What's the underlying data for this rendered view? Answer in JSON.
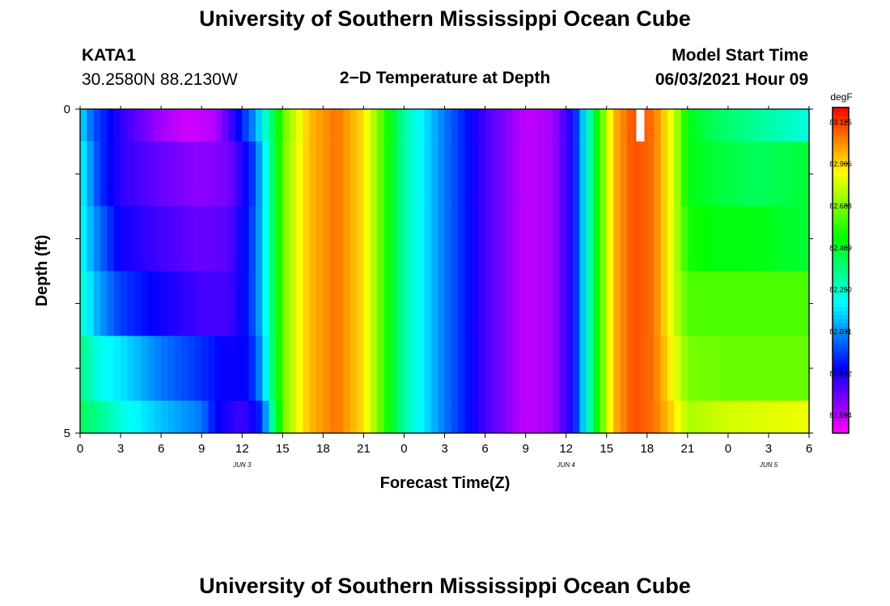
{
  "header": {
    "title": "University of Southern Mississippi Ocean Cube",
    "station_id": "KATA1",
    "station_coords": "30.2580N  88.2130W",
    "plot_title": "2−D Temperature at Depth",
    "model_start_label": "Model Start Time",
    "model_start_value": "06/03/2021 Hour 09"
  },
  "footer": {
    "title": "University of Southern Mississippi Ocean Cube"
  },
  "chart_data": {
    "type": "heatmap",
    "title": "2−D Temperature at Depth",
    "xlabel": "Forecast Time(Z)",
    "ylabel": "Depth (ft)",
    "units": "degF",
    "xlim_hours": [
      0,
      54
    ],
    "ylim_ft": [
      5,
      0
    ],
    "y_ticks": [
      "0",
      "5"
    ],
    "x_ticks": [
      {
        "hour": 0,
        "label": "0"
      },
      {
        "hour": 3,
        "label": "3"
      },
      {
        "hour": 6,
        "label": "6"
      },
      {
        "hour": 9,
        "label": "9"
      },
      {
        "hour": 12,
        "label": "12"
      },
      {
        "hour": 15,
        "label": "15"
      },
      {
        "hour": 18,
        "label": "18"
      },
      {
        "hour": 21,
        "label": "21"
      },
      {
        "hour": 24,
        "label": "0"
      },
      {
        "hour": 27,
        "label": "3"
      },
      {
        "hour": 30,
        "label": "6"
      },
      {
        "hour": 33,
        "label": "9"
      },
      {
        "hour": 36,
        "label": "12"
      },
      {
        "hour": 39,
        "label": "15"
      },
      {
        "hour": 42,
        "label": "18"
      },
      {
        "hour": 45,
        "label": "21"
      },
      {
        "hour": 48,
        "label": "0"
      },
      {
        "hour": 51,
        "label": "3"
      },
      {
        "hour": 54,
        "label": "6"
      }
    ],
    "date_labels": [
      {
        "hour": 12,
        "label": "JUN 3"
      },
      {
        "hour": 36,
        "label": "JUN 4"
      },
      {
        "hour": 51,
        "label": "JUN 5"
      }
    ],
    "colorbar": {
      "label": "degF",
      "min": 81.5,
      "max": 83.2,
      "ticks": [
        "83.125",
        "82.906",
        "82.688",
        "82.469",
        "82.250",
        "82.031",
        "81.812",
        "81.594"
      ]
    },
    "depth_layers_ft": [
      {
        "top": 0.0,
        "bottom": 0.5,
        "keys": [
          [
            0,
            82.15
          ],
          [
            1,
            81.95
          ],
          [
            3,
            81.78
          ],
          [
            6,
            81.62
          ],
          [
            8,
            81.56
          ],
          [
            10,
            81.6
          ],
          [
            11.5,
            81.8
          ],
          [
            13,
            82.05
          ],
          [
            14.3,
            82.4
          ],
          [
            15.3,
            82.7
          ],
          [
            17,
            82.95
          ],
          [
            19,
            83.05
          ],
          [
            21,
            82.9
          ],
          [
            22.5,
            82.6
          ],
          [
            24,
            82.3
          ],
          [
            27,
            82.0
          ],
          [
            30,
            81.75
          ],
          [
            33,
            81.58
          ],
          [
            35,
            81.62
          ],
          [
            36.5,
            81.82
          ],
          [
            37.5,
            82.2
          ],
          [
            38.5,
            82.6
          ],
          [
            39.5,
            82.95
          ],
          [
            41,
            83.1
          ],
          [
            42.5,
            83.05
          ],
          [
            44,
            82.8
          ],
          [
            45,
            82.5
          ],
          [
            47,
            82.4
          ],
          [
            49,
            82.35
          ],
          [
            51,
            82.3
          ],
          [
            54,
            82.22
          ]
        ]
      },
      {
        "top": 0.5,
        "bottom": 1.5,
        "keys": [
          [
            0,
            82.2
          ],
          [
            1.5,
            81.9
          ],
          [
            3,
            81.78
          ],
          [
            6,
            81.7
          ],
          [
            9,
            81.65
          ],
          [
            11,
            81.68
          ],
          [
            12.5,
            81.85
          ],
          [
            13.5,
            82.1
          ],
          [
            14.3,
            82.4
          ],
          [
            15.3,
            82.72
          ],
          [
            17,
            82.95
          ],
          [
            19,
            83.05
          ],
          [
            21,
            82.9
          ],
          [
            22.5,
            82.6
          ],
          [
            24,
            82.3
          ],
          [
            27,
            82.0
          ],
          [
            30,
            81.75
          ],
          [
            33,
            81.58
          ],
          [
            35,
            81.62
          ],
          [
            36.5,
            81.82
          ],
          [
            37.5,
            82.2
          ],
          [
            38.5,
            82.6
          ],
          [
            39.5,
            82.95
          ],
          [
            41,
            83.1
          ],
          [
            42.5,
            83.05
          ],
          [
            44,
            82.8
          ],
          [
            45,
            82.5
          ],
          [
            47,
            82.45
          ],
          [
            50,
            82.4
          ],
          [
            52,
            82.42
          ],
          [
            54,
            82.45
          ]
        ]
      },
      {
        "top": 1.5,
        "bottom": 2.5,
        "keys": [
          [
            0,
            82.2
          ],
          [
            1.5,
            81.98
          ],
          [
            3,
            81.82
          ],
          [
            6,
            81.75
          ],
          [
            9,
            81.7
          ],
          [
            11,
            81.72
          ],
          [
            12.5,
            81.88
          ],
          [
            13.5,
            82.1
          ],
          [
            14.3,
            82.4
          ],
          [
            15.3,
            82.72
          ],
          [
            17,
            82.95
          ],
          [
            19,
            83.05
          ],
          [
            21,
            82.9
          ],
          [
            22.5,
            82.6
          ],
          [
            24,
            82.3
          ],
          [
            27,
            82.0
          ],
          [
            30,
            81.75
          ],
          [
            33,
            81.58
          ],
          [
            35,
            81.62
          ],
          [
            36.5,
            81.82
          ],
          [
            37.5,
            82.2
          ],
          [
            38.5,
            82.6
          ],
          [
            39.5,
            82.95
          ],
          [
            41,
            83.1
          ],
          [
            42.5,
            83.05
          ],
          [
            44,
            82.8
          ],
          [
            45,
            82.55
          ],
          [
            47,
            82.5
          ],
          [
            50,
            82.5
          ],
          [
            52,
            82.47
          ],
          [
            54,
            82.45
          ]
        ]
      },
      {
        "top": 2.5,
        "bottom": 3.5,
        "keys": [
          [
            0,
            82.25
          ],
          [
            1.5,
            82.05
          ],
          [
            3,
            81.92
          ],
          [
            6,
            81.82
          ],
          [
            9,
            81.75
          ],
          [
            11,
            81.75
          ],
          [
            12.5,
            81.88
          ],
          [
            13.5,
            82.1
          ],
          [
            14.3,
            82.4
          ],
          [
            15.3,
            82.72
          ],
          [
            17,
            82.95
          ],
          [
            19,
            83.05
          ],
          [
            21,
            82.9
          ],
          [
            22.5,
            82.6
          ],
          [
            24,
            82.3
          ],
          [
            27,
            82.0
          ],
          [
            30,
            81.75
          ],
          [
            33,
            81.58
          ],
          [
            35,
            81.62
          ],
          [
            36.5,
            81.82
          ],
          [
            37.5,
            82.2
          ],
          [
            38.5,
            82.6
          ],
          [
            39.5,
            82.95
          ],
          [
            41,
            83.1
          ],
          [
            42.5,
            83.05
          ],
          [
            44,
            82.8
          ],
          [
            45,
            82.62
          ],
          [
            48,
            82.62
          ],
          [
            51,
            82.62
          ],
          [
            54,
            82.62
          ]
        ]
      },
      {
        "top": 3.5,
        "bottom": 4.5,
        "keys": [
          [
            0,
            82.35
          ],
          [
            1.5,
            82.2
          ],
          [
            3,
            82.15
          ],
          [
            6,
            82.0
          ],
          [
            9,
            81.9
          ],
          [
            11,
            81.82
          ],
          [
            12.5,
            81.85
          ],
          [
            13.5,
            82.05
          ],
          [
            14.3,
            82.4
          ],
          [
            15.3,
            82.72
          ],
          [
            17,
            82.95
          ],
          [
            19,
            83.05
          ],
          [
            21,
            82.9
          ],
          [
            22.5,
            82.6
          ],
          [
            24,
            82.3
          ],
          [
            27,
            82.0
          ],
          [
            30,
            81.75
          ],
          [
            33,
            81.58
          ],
          [
            35,
            81.62
          ],
          [
            36.5,
            81.82
          ],
          [
            37.5,
            82.2
          ],
          [
            38.5,
            82.6
          ],
          [
            39.5,
            82.95
          ],
          [
            41,
            83.1
          ],
          [
            42.5,
            83.05
          ],
          [
            44,
            82.85
          ],
          [
            45,
            82.68
          ],
          [
            48,
            82.66
          ],
          [
            51,
            82.66
          ],
          [
            54,
            82.66
          ]
        ]
      },
      {
        "top": 4.5,
        "bottom": 5.0,
        "keys": [
          [
            0,
            82.4
          ],
          [
            2,
            82.3
          ],
          [
            3,
            82.22
          ],
          [
            6,
            82.1
          ],
          [
            9,
            82.0
          ],
          [
            10,
            81.85
          ],
          [
            12,
            81.75
          ],
          [
            13.5,
            81.9
          ],
          [
            14.3,
            82.35
          ],
          [
            15.3,
            82.72
          ],
          [
            17,
            82.95
          ],
          [
            19,
            83.05
          ],
          [
            21,
            82.9
          ],
          [
            22.5,
            82.6
          ],
          [
            24,
            82.3
          ],
          [
            27,
            82.0
          ],
          [
            30,
            81.75
          ],
          [
            33,
            81.58
          ],
          [
            35,
            81.62
          ],
          [
            36.5,
            81.82
          ],
          [
            37.5,
            82.2
          ],
          [
            38.5,
            82.6
          ],
          [
            39.5,
            82.95
          ],
          [
            41,
            83.1
          ],
          [
            42.5,
            83.05
          ],
          [
            44,
            82.9
          ],
          [
            45,
            82.75
          ],
          [
            48,
            82.8
          ],
          [
            51,
            82.82
          ],
          [
            54,
            82.84
          ]
        ]
      }
    ],
    "missing_cells": [
      {
        "hour_start": 41.2,
        "hour_end": 41.8,
        "depth_top": 0.0,
        "depth_bottom": 0.5
      }
    ]
  }
}
